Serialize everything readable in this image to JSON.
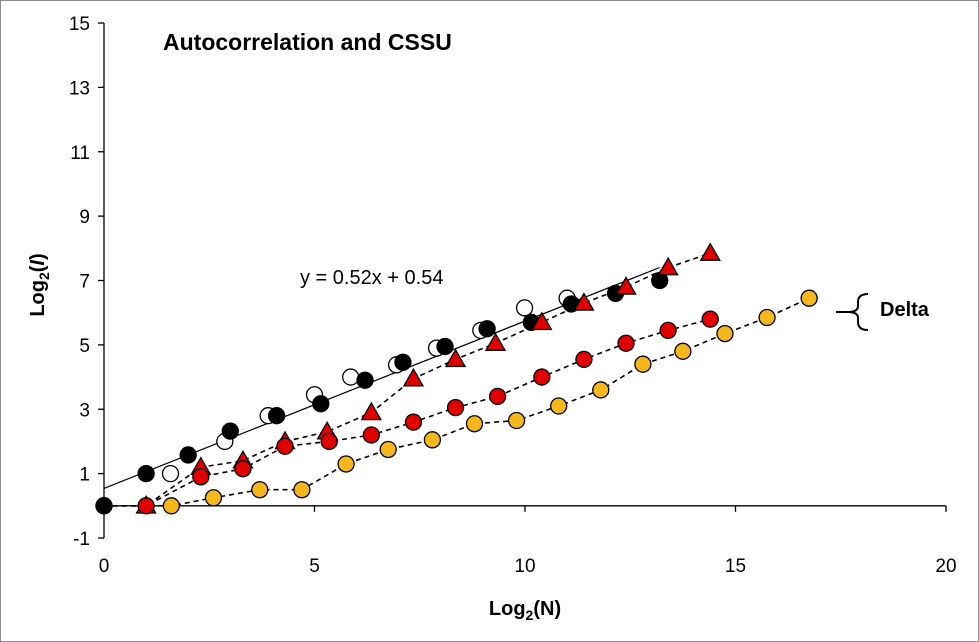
{
  "chart_data": {
    "type": "scatter",
    "title": "Autocorrelation and CSSU",
    "xlabel_main": "Log",
    "xlabel_sub": "2",
    "xlabel_rest": "(N)",
    "ylabel_main": "Log",
    "ylabel_sub": "2",
    "ylabel_open": "(",
    "ylabel_var": "I",
    "ylabel_close": ")",
    "xlim": [
      0,
      20
    ],
    "ylim": [
      -1,
      15
    ],
    "x_ticks": [
      "0",
      "5",
      "10",
      "15",
      "20"
    ],
    "y_ticks": [
      "-1",
      "1",
      "3",
      "5",
      "7",
      "9",
      "11",
      "13",
      "15"
    ],
    "grid": false,
    "legend": "none",
    "annotation": "y = 0.52x + 0.54",
    "delta_label": "Delta",
    "trendline": {
      "slope": 0.52,
      "intercept": 0.54,
      "x_range": [
        0,
        13.2
      ]
    },
    "series": [
      {
        "marker": "circle",
        "fill": "#ffffff",
        "stroke": "#000000",
        "line": "none",
        "points": [
          [
            0,
            0
          ],
          [
            1.58,
            1.0
          ],
          [
            2.87,
            2.0
          ],
          [
            3.9,
            2.8
          ],
          [
            5.0,
            3.45
          ],
          [
            5.86,
            4.0
          ],
          [
            6.95,
            4.38
          ],
          [
            7.9,
            4.9
          ],
          [
            8.95,
            5.45
          ],
          [
            9.99,
            6.15
          ],
          [
            11.0,
            6.45
          ]
        ]
      },
      {
        "marker": "circle",
        "fill": "#000000",
        "stroke": "#000000",
        "line": "none",
        "points": [
          [
            0,
            0
          ],
          [
            1.0,
            1.0
          ],
          [
            2.0,
            1.58
          ],
          [
            3.0,
            2.32
          ],
          [
            4.1,
            2.8
          ],
          [
            5.15,
            3.17
          ],
          [
            6.2,
            3.9
          ],
          [
            7.1,
            4.46
          ],
          [
            8.1,
            4.95
          ],
          [
            9.1,
            5.5
          ],
          [
            10.15,
            5.7
          ],
          [
            11.1,
            6.27
          ],
          [
            12.15,
            6.6
          ],
          [
            13.2,
            7.0
          ]
        ]
      },
      {
        "marker": "triangle",
        "fill": "#e00000",
        "stroke": "#000000",
        "line": "dashed",
        "points": [
          [
            1.0,
            0
          ],
          [
            2.3,
            1.2
          ],
          [
            3.3,
            1.4
          ],
          [
            4.3,
            2.0
          ],
          [
            5.3,
            2.3
          ],
          [
            6.35,
            2.9
          ],
          [
            7.35,
            3.95
          ],
          [
            8.35,
            4.55
          ],
          [
            9.3,
            5.05
          ],
          [
            10.4,
            5.7
          ],
          [
            11.4,
            6.3
          ],
          [
            12.4,
            6.8
          ],
          [
            13.4,
            7.4
          ],
          [
            14.4,
            7.85
          ]
        ]
      },
      {
        "marker": "circle",
        "fill": "#e00000",
        "stroke": "#000000",
        "line": "dashed",
        "points": [
          [
            1.0,
            0
          ],
          [
            2.3,
            0.9
          ],
          [
            3.3,
            1.15
          ],
          [
            4.3,
            1.85
          ],
          [
            5.35,
            2.0
          ],
          [
            6.35,
            2.2
          ],
          [
            7.35,
            2.6
          ],
          [
            8.35,
            3.05
          ],
          [
            9.35,
            3.4
          ],
          [
            10.4,
            4.0
          ],
          [
            11.4,
            4.55
          ],
          [
            12.4,
            5.05
          ],
          [
            13.4,
            5.45
          ],
          [
            14.4,
            5.8
          ]
        ]
      },
      {
        "marker": "circle",
        "fill": "#f5b81c",
        "stroke": "#000000",
        "line": "dashed",
        "points": [
          [
            1.6,
            0
          ],
          [
            2.6,
            0.25
          ],
          [
            3.7,
            0.5
          ],
          [
            4.7,
            0.5
          ],
          [
            5.75,
            1.3
          ],
          [
            6.75,
            1.75
          ],
          [
            7.8,
            2.05
          ],
          [
            8.8,
            2.55
          ],
          [
            9.8,
            2.65
          ],
          [
            10.8,
            3.1
          ],
          [
            11.8,
            3.6
          ],
          [
            12.8,
            4.4
          ],
          [
            13.75,
            4.8
          ],
          [
            14.75,
            5.35
          ],
          [
            15.75,
            5.85
          ],
          [
            16.75,
            6.45
          ]
        ]
      }
    ]
  }
}
